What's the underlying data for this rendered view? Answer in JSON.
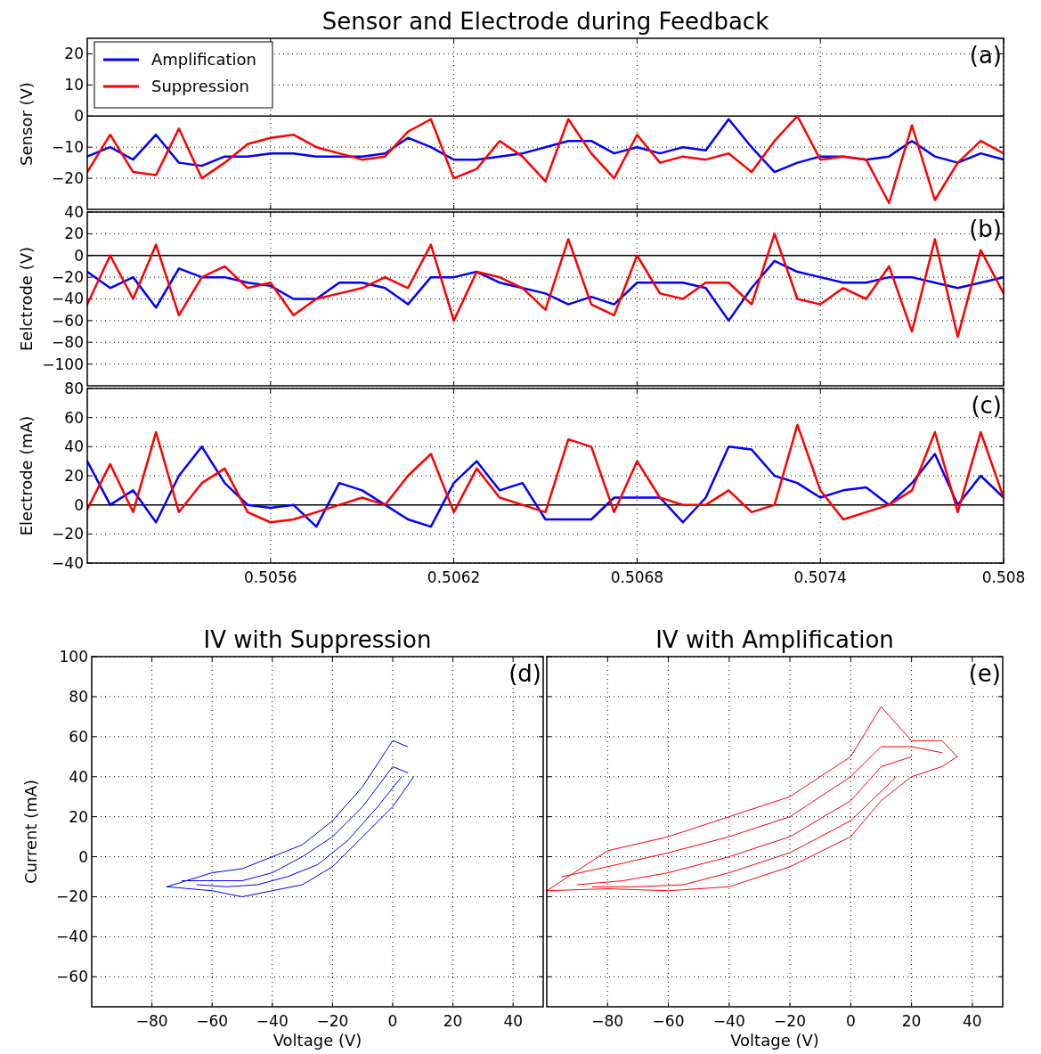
{
  "chart_data": [
    {
      "type": "line",
      "title": "Sensor and Electrode during Feedback",
      "ylabel": "Sensor (V)",
      "annotations": [
        "(a)"
      ],
      "legend": "top left",
      "grid": true,
      "tick_labels": "y",
      "xlim": [
        0.505,
        0.508
      ],
      "xticks": [
        0.5056,
        0.5062,
        0.5068,
        0.5074,
        0.508
      ],
      "ylim": [
        -30,
        25
      ],
      "yticks": [
        -20,
        -10,
        0,
        10,
        20
      ],
      "ref_lines": [
        {
          "axis": "y",
          "value": 0,
          "color": "#000000"
        }
      ],
      "x": [
        0.505,
        0.505075,
        0.50515,
        0.505225,
        0.5053,
        0.505375,
        0.50545,
        0.505525,
        0.5056,
        0.505675,
        0.50575,
        0.505825,
        0.5059,
        0.505975,
        0.50605,
        0.506125,
        0.5062,
        0.506275,
        0.50635,
        0.506425,
        0.5065,
        0.506575,
        0.50665,
        0.506725,
        0.5068,
        0.506875,
        0.50695,
        0.507025,
        0.5071,
        0.507175,
        0.50725,
        0.507325,
        0.5074,
        0.507475,
        0.50755,
        0.507625,
        0.5077,
        0.507775,
        0.50785,
        0.507925,
        0.508
      ],
      "series": [
        {
          "name": "Amplification",
          "color": "#0000ff",
          "values": [
            -13,
            -10,
            -14,
            -6,
            -15,
            -16,
            -13,
            -13,
            -12,
            -12,
            -13,
            -13,
            -13,
            -12,
            -7,
            -10,
            -14,
            -14,
            -13,
            -12,
            -10,
            -8,
            -8,
            -12,
            -10,
            -12,
            -10,
            -11,
            -1,
            -10,
            -18,
            -15,
            -13,
            -13,
            -14,
            -13,
            -8,
            -13,
            -15,
            -12,
            -14
          ]
        },
        {
          "name": "Suppression",
          "color": "#ff0000",
          "values": [
            -18,
            -6,
            -18,
            -19,
            -4,
            -20,
            -15,
            -9,
            -7,
            -6,
            -10,
            -12,
            -14,
            -13,
            -5,
            -1,
            -20,
            -17,
            -8,
            -13,
            -21,
            -1,
            -12,
            -20,
            -6,
            -15,
            -13,
            -14,
            -12,
            -18,
            -8,
            0,
            -14,
            -13,
            -14,
            -28,
            -3,
            -27,
            -15,
            -8,
            -12
          ]
        }
      ]
    },
    {
      "type": "line",
      "ylabel": "Eelctrode (V)",
      "annotations": [
        "(b)"
      ],
      "grid": true,
      "tick_labels": "y",
      "xlim": [
        0.505,
        0.508
      ],
      "xticks": [
        0.5056,
        0.5062,
        0.5068,
        0.5074,
        0.508
      ],
      "ylim": [
        -120,
        40
      ],
      "yticks": [
        -100,
        -80,
        -60,
        -40,
        -20,
        0,
        20,
        40
      ],
      "ref_lines": [
        {
          "axis": "y",
          "value": 0,
          "color": "#000000"
        }
      ],
      "x": [
        0.505,
        0.505075,
        0.50515,
        0.505225,
        0.5053,
        0.505375,
        0.50545,
        0.505525,
        0.5056,
        0.505675,
        0.50575,
        0.505825,
        0.5059,
        0.505975,
        0.50605,
        0.506125,
        0.5062,
        0.506275,
        0.50635,
        0.506425,
        0.5065,
        0.506575,
        0.50665,
        0.506725,
        0.5068,
        0.506875,
        0.50695,
        0.507025,
        0.5071,
        0.507175,
        0.50725,
        0.507325,
        0.5074,
        0.507475,
        0.50755,
        0.507625,
        0.5077,
        0.507775,
        0.50785,
        0.507925,
        0.508
      ],
      "series": [
        {
          "color": "#0000ff",
          "values": [
            -15,
            -30,
            -20,
            -48,
            -12,
            -20,
            -20,
            -25,
            -28,
            -40,
            -40,
            -25,
            -25,
            -30,
            -45,
            -20,
            -20,
            -15,
            -25,
            -30,
            -35,
            -45,
            -38,
            -45,
            -25,
            -25,
            -25,
            -30,
            -60,
            -30,
            -5,
            -15,
            -20,
            -25,
            -25,
            -20,
            -20,
            -25,
            -30,
            -25,
            -20
          ]
        },
        {
          "color": "#ff0000",
          "values": [
            -45,
            0,
            -40,
            10,
            -55,
            -20,
            -10,
            -30,
            -25,
            -55,
            -40,
            -35,
            -30,
            -20,
            -30,
            10,
            -60,
            -15,
            -20,
            -30,
            -50,
            15,
            -45,
            -55,
            0,
            -35,
            -40,
            -25,
            -25,
            -45,
            20,
            -40,
            -45,
            -30,
            -40,
            -10,
            -70,
            15,
            -75,
            5,
            -35
          ]
        }
      ]
    },
    {
      "type": "line",
      "ylabel": "Electrode (mA)",
      "annotations": [
        "(c)"
      ],
      "grid": true,
      "xlim": [
        0.505,
        0.508
      ],
      "xticks": [
        0.5056,
        0.5062,
        0.5068,
        0.5074,
        0.508
      ],
      "ylim": [
        -40,
        80
      ],
      "yticks": [
        -40,
        -20,
        0,
        20,
        40,
        60,
        80
      ],
      "ref_lines": [
        {
          "axis": "y",
          "value": 0,
          "color": "#000000"
        }
      ],
      "x": [
        0.505,
        0.505075,
        0.50515,
        0.505225,
        0.5053,
        0.505375,
        0.50545,
        0.505525,
        0.5056,
        0.505675,
        0.50575,
        0.505825,
        0.5059,
        0.505975,
        0.50605,
        0.506125,
        0.5062,
        0.506275,
        0.50635,
        0.506425,
        0.5065,
        0.506575,
        0.50665,
        0.506725,
        0.5068,
        0.506875,
        0.50695,
        0.507025,
        0.5071,
        0.507175,
        0.50725,
        0.507325,
        0.5074,
        0.507475,
        0.50755,
        0.507625,
        0.5077,
        0.507775,
        0.50785,
        0.507925,
        0.508
      ],
      "series": [
        {
          "color": "#0000ff",
          "values": [
            30,
            0,
            10,
            -12,
            20,
            40,
            15,
            0,
            -2,
            0,
            -15,
            15,
            10,
            0,
            -10,
            -15,
            15,
            30,
            10,
            15,
            -10,
            -10,
            -10,
            5,
            5,
            5,
            -12,
            5,
            40,
            38,
            20,
            15,
            5,
            10,
            12,
            0,
            15,
            35,
            0,
            20,
            5
          ]
        },
        {
          "color": "#ff0000",
          "values": [
            -3,
            28,
            -5,
            50,
            -5,
            15,
            25,
            -5,
            -12,
            -10,
            -5,
            0,
            5,
            0,
            20,
            35,
            -5,
            25,
            5,
            0,
            -5,
            45,
            40,
            -5,
            30,
            5,
            0,
            0,
            10,
            -5,
            0,
            55,
            10,
            -10,
            -5,
            0,
            10,
            50,
            -5,
            50,
            5
          ]
        }
      ]
    },
    {
      "type": "line",
      "title": "IV with Suppression",
      "xlabel": "Voltage (V)",
      "ylabel": "Current (mA)",
      "annotations": [
        "(d)"
      ],
      "grid": true,
      "xlim": [
        -100,
        50
      ],
      "xticks": [
        -80,
        -60,
        -40,
        -20,
        0,
        20,
        40
      ],
      "ylim": [
        -75,
        100
      ],
      "yticks": [
        -60,
        -40,
        -20,
        0,
        20,
        40,
        60,
        80,
        100
      ],
      "series": [
        {
          "color": "#0000ff",
          "x": [
            -75,
            -60,
            -50,
            -40,
            -30,
            -20,
            -10,
            0,
            7
          ],
          "values": [
            -15,
            -17,
            -20,
            -17,
            -14,
            -5,
            10,
            25,
            40
          ]
        },
        {
          "color": "#0000ff",
          "x": [
            -75,
            -60,
            -50,
            -40,
            -30,
            -20,
            -10,
            0,
            5
          ],
          "values": [
            -15,
            -8,
            -6,
            0,
            6,
            18,
            35,
            58,
            55
          ]
        },
        {
          "color": "#0000ff",
          "x": [
            -70,
            -60,
            -50,
            -40,
            -30,
            -20,
            -10,
            0,
            5
          ],
          "values": [
            -12,
            -12,
            -12,
            -8,
            0,
            10,
            25,
            45,
            42
          ]
        },
        {
          "color": "#0000ff",
          "x": [
            -65,
            -55,
            -45,
            -35,
            -25,
            -15,
            -5,
            3
          ],
          "values": [
            -14,
            -15,
            -14,
            -10,
            -4,
            8,
            25,
            40
          ]
        }
      ]
    },
    {
      "type": "line",
      "title": "IV with Amplification",
      "xlabel": "Voltage (V)",
      "annotations": [
        "(e)"
      ],
      "grid": true,
      "tick_labels": "x",
      "xlim": [
        -100,
        50
      ],
      "xticks": [
        -80,
        -60,
        -40,
        -20,
        0,
        20,
        40
      ],
      "ylim": [
        -75,
        100
      ],
      "yticks": [
        -60,
        -40,
        -20,
        0,
        20,
        40,
        60,
        80,
        100
      ],
      "series": [
        {
          "color": "#ff0000",
          "x": [
            -100,
            -80,
            -60,
            -40,
            -20,
            0,
            10,
            20,
            30,
            35
          ],
          "values": [
            -17,
            -16,
            -17,
            -15,
            -5,
            10,
            28,
            40,
            45,
            50
          ]
        },
        {
          "color": "#ff0000",
          "x": [
            -100,
            -80,
            -60,
            -40,
            -20,
            0,
            10,
            20,
            30,
            35
          ],
          "values": [
            -17,
            3,
            10,
            20,
            30,
            50,
            75,
            58,
            58,
            50
          ]
        },
        {
          "color": "#ff0000",
          "x": [
            -95,
            -80,
            -60,
            -40,
            -20,
            0,
            10,
            20,
            30
          ],
          "values": [
            -10,
            -5,
            2,
            10,
            20,
            40,
            55,
            55,
            52
          ]
        },
        {
          "color": "#ff0000",
          "x": [
            -90,
            -75,
            -60,
            -40,
            -20,
            0,
            10,
            20
          ],
          "values": [
            -14,
            -12,
            -8,
            0,
            10,
            28,
            45,
            50
          ]
        },
        {
          "color": "#ff0000",
          "x": [
            -85,
            -70,
            -55,
            -40,
            -20,
            0,
            15
          ],
          "values": [
            -15,
            -15,
            -14,
            -8,
            2,
            18,
            40
          ]
        }
      ]
    }
  ]
}
